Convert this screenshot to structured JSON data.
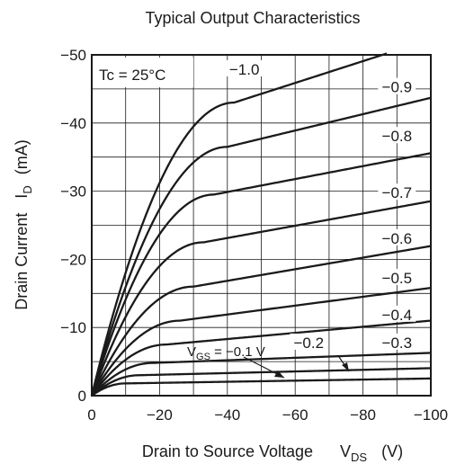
{
  "chart_data": {
    "type": "line",
    "title": "Typical Output Characteristics",
    "xlabel": {
      "main": "Drain to Source Voltage",
      "symbol": "V",
      "sub": "DS",
      "unit": "(V)"
    },
    "ylabel": {
      "main": "Drain Current",
      "symbol": "I",
      "sub": "D",
      "unit": "(mA)"
    },
    "xlim": [
      0,
      -100
    ],
    "ylim": [
      0,
      -50
    ],
    "xticks": [
      "0",
      "−20",
      "−40",
      "−60",
      "−80",
      "−100"
    ],
    "yticks": [
      "0",
      "−10",
      "−20",
      "−30",
      "−40",
      "−50"
    ],
    "xtick_values": [
      0,
      -20,
      -40,
      -60,
      -80,
      -100
    ],
    "ytick_values": [
      0,
      -10,
      -20,
      -30,
      -40,
      -50
    ],
    "grid": true,
    "condition": "Tc = 25°C",
    "vgs_label": {
      "prefix": "V",
      "sub": "GS",
      "text": " = −0.1 V"
    },
    "line_color": "#1a1a1a",
    "series": [
      {
        "name": "−0.1",
        "knee": 10,
        "isat": -1.8,
        "slope": -0.008,
        "x": [
          0,
          -100
        ],
        "y": [
          0,
          -2.3
        ]
      },
      {
        "name": "−0.2",
        "knee": 14,
        "isat": -3.0,
        "slope": -0.012,
        "x": [
          0,
          -100
        ],
        "y": [
          0,
          -4.0
        ]
      },
      {
        "name": "−0.3",
        "knee": 18,
        "isat": -4.8,
        "slope": -0.018,
        "x": [
          0,
          -100
        ],
        "y": [
          0,
          -6.3
        ]
      },
      {
        "name": "−0.4",
        "knee": 22,
        "isat": -7.5,
        "slope": -0.045,
        "x": [
          0,
          -100
        ],
        "y": [
          0,
          -11.0
        ]
      },
      {
        "name": "−0.5",
        "knee": 26,
        "isat": -11.0,
        "slope": -0.065,
        "x": [
          0,
          -100
        ],
        "y": [
          0,
          -16.2
        ]
      },
      {
        "name": "−0.6",
        "knee": 30,
        "isat": -16.0,
        "slope": -0.085,
        "x": [
          0,
          -100
        ],
        "y": [
          0,
          -22.0
        ]
      },
      {
        "name": "−0.7",
        "knee": 33,
        "isat": -22.5,
        "slope": -0.09,
        "x": [
          0,
          -100
        ],
        "y": [
          0,
          -28.5
        ]
      },
      {
        "name": "−0.8",
        "knee": 36,
        "isat": -29.5,
        "slope": -0.095,
        "x": [
          0,
          -100
        ],
        "y": [
          0,
          -35.8
        ]
      },
      {
        "name": "−0.9",
        "knee": 40,
        "isat": -36.5,
        "slope": -0.12,
        "x": [
          0,
          -100
        ],
        "y": [
          0,
          -43.7
        ]
      },
      {
        "name": "−1.0",
        "knee": 42,
        "isat": -43.0,
        "slope": -0.16,
        "x": [
          0,
          -87
        ],
        "y": [
          0,
          -50.0
        ]
      }
    ],
    "curve_labels": [
      {
        "text": "−1.0",
        "series": "−1.0",
        "at": [
          -45,
          -47.5
        ]
      },
      {
        "text": "−0.9",
        "series": "−0.9",
        "at": [
          -90,
          -44.9
        ]
      },
      {
        "text": "−0.8",
        "series": "−0.8",
        "at": [
          -90,
          -37.7
        ]
      },
      {
        "text": "−0.7",
        "series": "−0.7",
        "at": [
          -90,
          -29.4
        ]
      },
      {
        "text": "−0.6",
        "series": "−0.6",
        "at": [
          -90,
          -22.7
        ]
      },
      {
        "text": "−0.5",
        "series": "−0.5",
        "at": [
          -90,
          -16.9
        ]
      },
      {
        "text": "−0.4",
        "series": "−0.4",
        "at": [
          -90,
          -11.5
        ]
      },
      {
        "text": "−0.3",
        "series": "−0.3",
        "at": [
          -90,
          -7.4
        ]
      },
      {
        "text": "−0.2",
        "series": "−0.2",
        "at": [
          -64,
          -7.4
        ]
      }
    ]
  }
}
